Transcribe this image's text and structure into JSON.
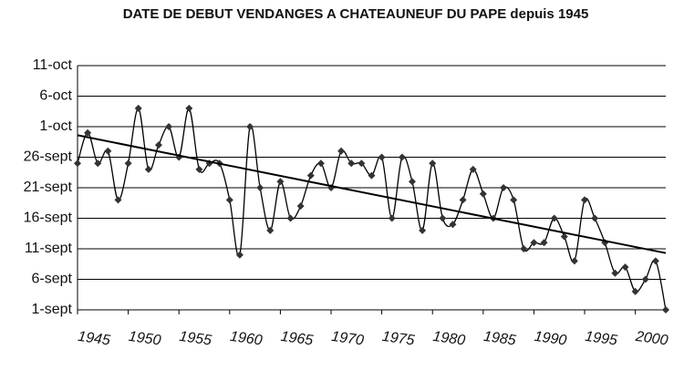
{
  "chart_data": {
    "type": "line",
    "title": "DATE DE DEBUT VENDANGES A CHATEAUNEUF DU PAPE depuis 1945",
    "x": [
      1945,
      1946,
      1947,
      1948,
      1949,
      1950,
      1951,
      1952,
      1953,
      1954,
      1955,
      1956,
      1957,
      1958,
      1959,
      1960,
      1961,
      1962,
      1963,
      1964,
      1965,
      1966,
      1967,
      1968,
      1969,
      1970,
      1971,
      1972,
      1973,
      1974,
      1975,
      1976,
      1977,
      1978,
      1979,
      1980,
      1981,
      1982,
      1983,
      1984,
      1985,
      1986,
      1987,
      1988,
      1989,
      1990,
      1991,
      1992,
      1993,
      1994,
      1995,
      1996,
      1997,
      1998,
      1999,
      2000,
      2001,
      2002,
      2003
    ],
    "series": [
      {
        "color": "#000000",
        "values": [
          25,
          30,
          25,
          27,
          19,
          25,
          34,
          24,
          28,
          31,
          26,
          34,
          24,
          25,
          25,
          19,
          10,
          31,
          21,
          14,
          22,
          16,
          18,
          23,
          25,
          21,
          27,
          25,
          25,
          23,
          26,
          16,
          26,
          22,
          14,
          25,
          16,
          15,
          19,
          24,
          20,
          16,
          21,
          19,
          11,
          12,
          12,
          16,
          13,
          9,
          19,
          16,
          12,
          7,
          8,
          4,
          6,
          9,
          1
        ]
      }
    ],
    "trend": {
      "x": [
        1945,
        2003
      ],
      "values": [
        29.6,
        10.3
      ]
    },
    "xlim": [
      1945,
      2003
    ],
    "xticks": [
      1945,
      1950,
      1955,
      1960,
      1965,
      1970,
      1975,
      1980,
      1985,
      1990,
      1995,
      2000
    ],
    "ylim": [
      1,
      41
    ],
    "yticks": [
      {
        "value": 1,
        "label": "1-sept"
      },
      {
        "value": 6,
        "label": "6-sept"
      },
      {
        "value": 11,
        "label": "11-sept"
      },
      {
        "value": 16,
        "label": "16-sept"
      },
      {
        "value": 21,
        "label": "21-sept"
      },
      {
        "value": 26,
        "label": "26-sept"
      },
      {
        "value": 31,
        "label": "1-oct"
      },
      {
        "value": 36,
        "label": "6-oct"
      },
      {
        "value": 41,
        "label": "11-oct"
      }
    ],
    "grid": true
  }
}
